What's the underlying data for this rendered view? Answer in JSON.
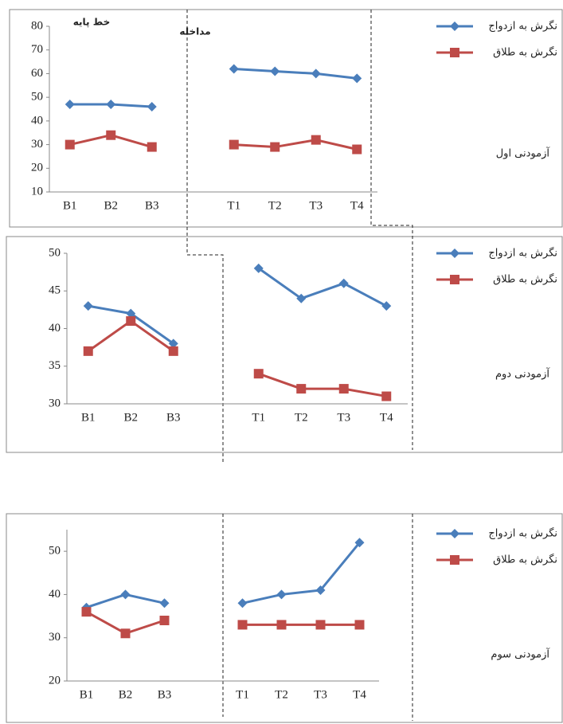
{
  "chart_data": [
    {
      "type": "line",
      "title": "آزمودنی اول",
      "annotations": [
        "خط پایه",
        "مداخله"
      ],
      "categories": [
        "B1",
        "B2",
        "B3",
        null,
        "T1",
        "T2",
        "T3",
        "T4"
      ],
      "series": [
        {
          "name": "نگرش به ازدواج",
          "color": "#4a7ebb",
          "marker": "diamond",
          "values": [
            47,
            47,
            46,
            null,
            62,
            61,
            60,
            58
          ]
        },
        {
          "name": "نگرش به طلاق",
          "color": "#be4b48",
          "marker": "square",
          "values": [
            30,
            34,
            29,
            null,
            30,
            29,
            32,
            28
          ]
        }
      ],
      "ylim": [
        10,
        80
      ],
      "yticks": [
        10,
        20,
        30,
        40,
        50,
        60,
        70,
        80
      ],
      "grid": false
    },
    {
      "type": "line",
      "title": "آزمودنی دوم",
      "categories": [
        "B1",
        "B2",
        "B3",
        null,
        "T1",
        "T2",
        "T3",
        "T4"
      ],
      "series": [
        {
          "name": "نگرش به ازدواج",
          "color": "#4a7ebb",
          "marker": "diamond",
          "values": [
            43,
            42,
            38,
            null,
            48,
            44,
            46,
            43
          ]
        },
        {
          "name": "نگرش به طلاق",
          "color": "#be4b48",
          "marker": "square",
          "values": [
            37,
            41,
            37,
            null,
            34,
            32,
            32,
            31
          ]
        }
      ],
      "ylim": [
        30,
        50
      ],
      "yticks": [
        30,
        35,
        40,
        45,
        50
      ],
      "grid": false
    },
    {
      "type": "line",
      "title": "آزمودنی سوم",
      "categories": [
        "B1",
        "B2",
        "B3",
        null,
        "T1",
        "T2",
        "T3",
        "T4"
      ],
      "series": [
        {
          "name": "نگرش به ازدواج",
          "color": "#4a7ebb",
          "marker": "diamond",
          "values": [
            37,
            40,
            38,
            null,
            38,
            40,
            41,
            52
          ]
        },
        {
          "name": "نگرش به طلاق",
          "color": "#be4b48",
          "marker": "square",
          "values": [
            36,
            31,
            34,
            null,
            33,
            33,
            33,
            33
          ]
        }
      ],
      "ylim": [
        20,
        55
      ],
      "yticks": [
        20,
        30,
        40,
        50
      ],
      "grid": false
    }
  ]
}
